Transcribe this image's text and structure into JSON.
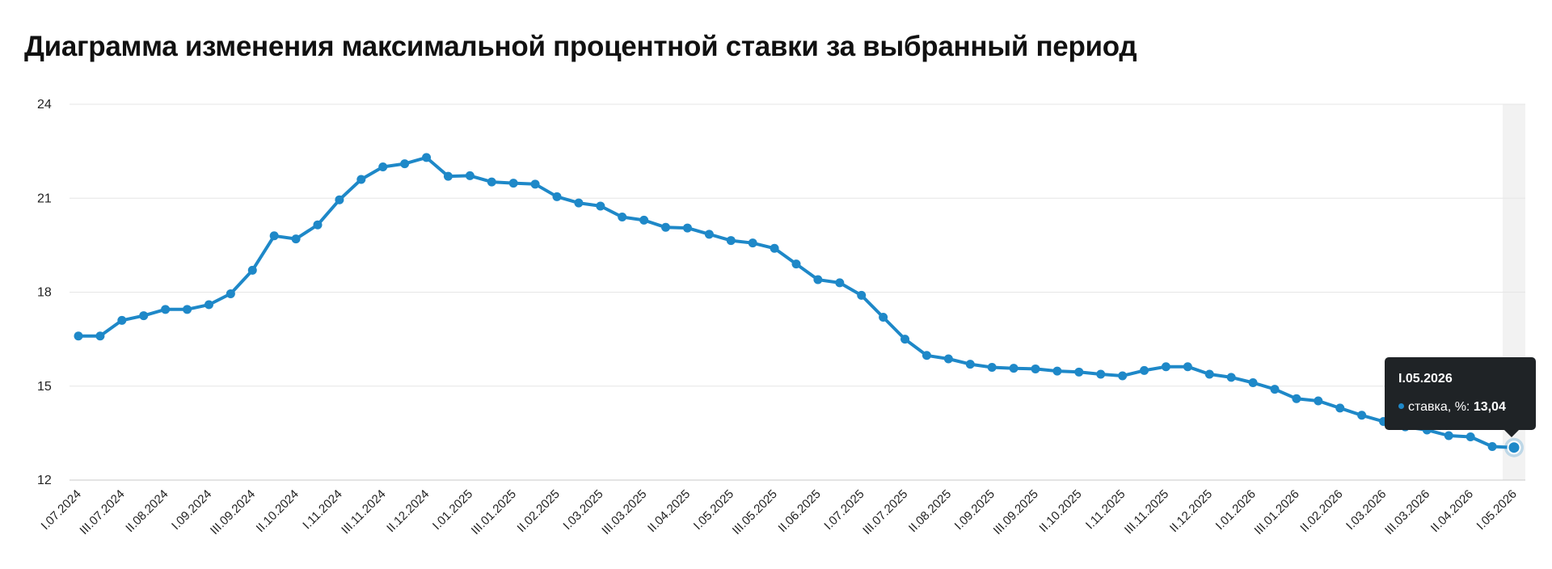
{
  "title": "Диаграмма изменения максимальной процентной ставки за выбранный период",
  "colors": {
    "line": "#1e88c8",
    "grid": "#e6e6e6",
    "axis": "#c8c8c8",
    "hover_band": "#f2f2f2",
    "text": "#222222"
  },
  "tooltip": {
    "date": "I.05.2026",
    "series_label": "ставка, %:",
    "value": "13,04"
  },
  "chart_data": {
    "type": "line",
    "title": "Диаграмма изменения максимальной процентной ставки за выбранный период",
    "xlabel": "",
    "ylabel": "",
    "ylim": [
      12,
      24
    ],
    "yticks": [
      12,
      15,
      18,
      21,
      24
    ],
    "grid": true,
    "tick_labels": [
      "I.07.2024",
      "III.07.2024",
      "II.08.2024",
      "I.09.2024",
      "III.09.2024",
      "II.10.2024",
      "I.11.2024",
      "III.11.2024",
      "II.12.2024",
      "I.01.2025",
      "III.01.2025",
      "II.02.2025",
      "I.03.2025",
      "III.03.2025",
      "II.04.2025",
      "I.05.2025",
      "III.05.2025",
      "II.06.2025",
      "I.07.2025",
      "III.07.2025",
      "II.08.2025",
      "I.09.2025",
      "III.09.2025",
      "II.10.2025",
      "I.11.2025",
      "III.11.2025",
      "II.12.2025",
      "I.01.2026",
      "III.01.2026",
      "II.02.2026",
      "I.03.2026",
      "III.03.2026",
      "II.04.2026",
      "I.05.2026"
    ],
    "series": [
      {
        "name": "ставка, %",
        "values": [
          16.6,
          16.6,
          17.1,
          17.25,
          17.45,
          17.45,
          17.6,
          17.95,
          18.7,
          19.8,
          19.7,
          20.15,
          20.95,
          21.6,
          22.0,
          22.1,
          22.3,
          21.7,
          21.72,
          21.52,
          21.48,
          21.45,
          21.05,
          20.85,
          20.75,
          20.4,
          20.3,
          20.07,
          20.05,
          19.85,
          19.65,
          19.57,
          19.4,
          18.9,
          18.4,
          18.3,
          17.9,
          17.2,
          16.5,
          15.98,
          15.87,
          15.7,
          15.6,
          15.57,
          15.55,
          15.48,
          15.45,
          15.38,
          15.33,
          15.5,
          15.62,
          15.62,
          15.38,
          15.28,
          15.11,
          14.9,
          14.6,
          14.53,
          14.3,
          14.07,
          13.87,
          13.7,
          13.6,
          13.42,
          13.38,
          13.07,
          13.04
        ]
      }
    ],
    "highlight_index": 66
  }
}
